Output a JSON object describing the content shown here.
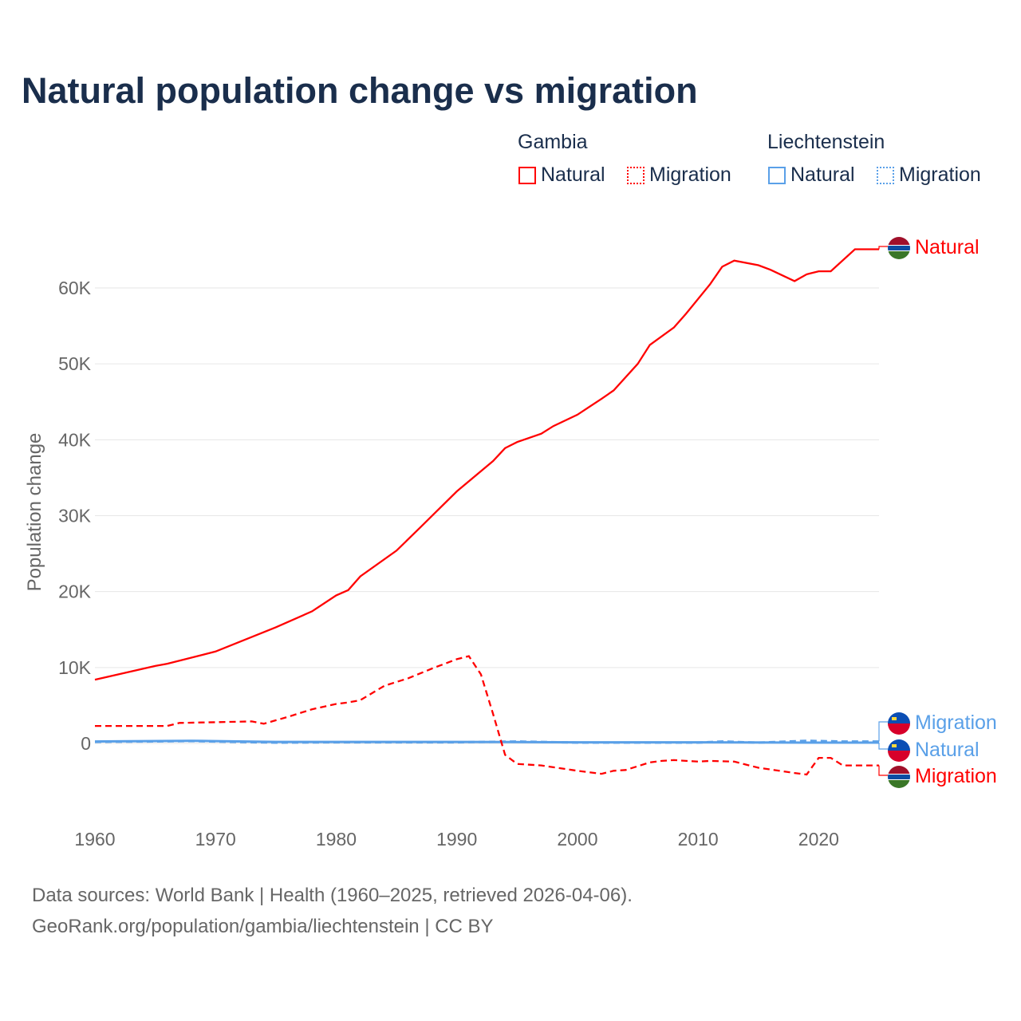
{
  "title": "Natural population change vs migration",
  "legend": {
    "groups": [
      {
        "name": "Gambia",
        "color": "#ff0000",
        "items": [
          "Natural",
          "Migration"
        ]
      },
      {
        "name": "Liechtenstein",
        "color": "#5aa0e8",
        "items": [
          "Natural",
          "Migration"
        ]
      }
    ]
  },
  "footer": {
    "line1": "Data sources: World Bank | Health (1960–2025, retrieved 2026-04-06).",
    "line2": "GeoRank.org/population/gambia/liechtenstein | CC BY"
  },
  "chart_data": {
    "type": "line",
    "title": "Natural population change vs migration",
    "xlabel": "",
    "ylabel": "Population change",
    "xlim": [
      1960,
      2025
    ],
    "ylim": [
      -10000,
      70000
    ],
    "xticks": [
      1960,
      1970,
      1980,
      1990,
      2000,
      2010,
      2020
    ],
    "yticks": [
      {
        "v": 0,
        "label": "0"
      },
      {
        "v": 10000,
        "label": "10K"
      },
      {
        "v": 20000,
        "label": "20K"
      },
      {
        "v": 30000,
        "label": "30K"
      },
      {
        "v": 40000,
        "label": "40K"
      },
      {
        "v": 50000,
        "label": "50K"
      },
      {
        "v": 60000,
        "label": "60K"
      }
    ],
    "grid": true,
    "series": [
      {
        "name": "Natural",
        "country": "Gambia",
        "color": "#ff0000",
        "dash": false,
        "x": [
          1960,
          1965,
          1966,
          1970,
          1975,
          1978,
          1980,
          1981,
          1982,
          1985,
          1987,
          1990,
          1993,
          1994,
          1995,
          1997,
          1998,
          2000,
          2002,
          2003,
          2005,
          2006,
          2008,
          2009,
          2011,
          2012,
          2013,
          2015,
          2016,
          2018,
          2019,
          2020,
          2021,
          2023,
          2025
        ],
        "y": [
          8400,
          10200,
          10500,
          12100,
          15300,
          17400,
          19500,
          20200,
          22000,
          25400,
          28500,
          33200,
          37200,
          38900,
          39700,
          40800,
          41800,
          43300,
          45400,
          46500,
          50000,
          52500,
          54800,
          56600,
          60500,
          62800,
          63600,
          63000,
          62400,
          60900,
          61800,
          62200,
          62200,
          65100,
          65100
        ]
      },
      {
        "name": "Migration",
        "country": "Gambia",
        "color": "#ff0000",
        "dash": true,
        "x": [
          1960,
          1966,
          1967,
          1970,
          1973,
          1974,
          1976,
          1978,
          1980,
          1981,
          1982,
          1984,
          1986,
          1988,
          1990,
          1991,
          1992,
          1993,
          1994,
          1995,
          1997,
          2000,
          2002,
          2003,
          2004,
          2006,
          2007,
          2008,
          2010,
          2011,
          2013,
          2015,
          2018,
          2019,
          2020,
          2021,
          2022,
          2025
        ],
        "y": [
          2300,
          2300,
          2700,
          2800,
          2900,
          2600,
          3500,
          4500,
          5200,
          5400,
          5700,
          7600,
          8600,
          9900,
          11100,
          11500,
          9100,
          3900,
          -1500,
          -2700,
          -2900,
          -3600,
          -4000,
          -3600,
          -3500,
          -2500,
          -2300,
          -2200,
          -2400,
          -2300,
          -2400,
          -3200,
          -3900,
          -4100,
          -1900,
          -1900,
          -2900,
          -2900
        ]
      },
      {
        "name": "Natural",
        "country": "Liechtenstein",
        "color": "#5aa0e8",
        "dash": false,
        "x": [
          1960,
          1968,
          1970,
          1975,
          1980,
          1990,
          2000,
          2010,
          2020,
          2025
        ],
        "y": [
          250,
          350,
          300,
          200,
          200,
          200,
          150,
          150,
          100,
          100
        ]
      },
      {
        "name": "Migration",
        "country": "Liechtenstein",
        "color": "#5aa0e8",
        "dash": true,
        "x": [
          1960,
          1968,
          1975,
          1980,
          1990,
          1995,
          2000,
          2010,
          2012,
          2015,
          2019,
          2022,
          2025
        ],
        "y": [
          200,
          300,
          100,
          150,
          150,
          250,
          100,
          100,
          250,
          100,
          350,
          250,
          250
        ]
      }
    ],
    "end_labels": [
      "Natural",
      "Migration",
      "Natural",
      "Migration"
    ]
  }
}
